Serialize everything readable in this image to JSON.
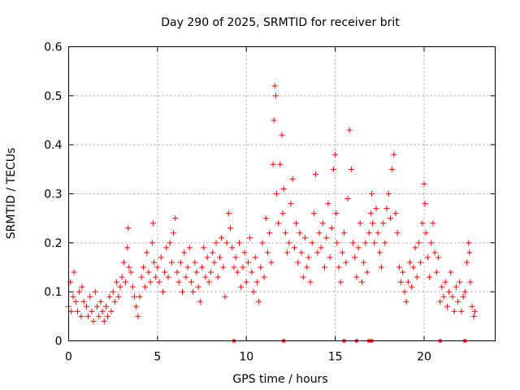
{
  "chart_data": {
    "type": "scatter",
    "title": "Day 290 of 2025, SRMTID for receiver brit",
    "xlabel": "GPS time / hours",
    "ylabel": "SRMTID / TECUs",
    "xlim": [
      0,
      24
    ],
    "ylim": [
      0,
      0.6
    ],
    "x_ticks": [
      0,
      5,
      10,
      15,
      20
    ],
    "x_tick_labels": [
      "0",
      "5",
      "10",
      "15",
      "20"
    ],
    "y_ticks": [
      0,
      0.1,
      0.2,
      0.3,
      0.4,
      0.5,
      0.6
    ],
    "y_tick_labels": [
      "0",
      "0.1",
      "0.2",
      "0.3",
      "0.4",
      "0.5",
      "0.6"
    ],
    "grid": true,
    "legend": "none",
    "marker": "plus",
    "series": [
      {
        "name": "SRMTID",
        "color": "#ff0000",
        "points": [
          [
            0.0,
            0.07
          ],
          [
            0.1,
            0.12
          ],
          [
            0.15,
            0.06
          ],
          [
            0.25,
            0.09
          ],
          [
            0.3,
            0.14
          ],
          [
            0.4,
            0.08
          ],
          [
            0.5,
            0.06
          ],
          [
            0.6,
            0.1
          ],
          [
            0.7,
            0.05
          ],
          [
            0.75,
            0.11
          ],
          [
            0.85,
            0.08
          ],
          [
            1.0,
            0.07
          ],
          [
            1.1,
            0.05
          ],
          [
            1.2,
            0.09
          ],
          [
            1.3,
            0.06
          ],
          [
            1.4,
            0.04
          ],
          [
            1.5,
            0.1
          ],
          [
            1.6,
            0.07
          ],
          [
            1.7,
            0.05
          ],
          [
            1.8,
            0.08
          ],
          [
            1.9,
            0.06
          ],
          [
            2.0,
            0.04
          ],
          [
            2.1,
            0.07
          ],
          [
            2.2,
            0.05
          ],
          [
            2.3,
            0.09
          ],
          [
            2.4,
            0.06
          ],
          [
            2.5,
            0.1
          ],
          [
            2.6,
            0.08
          ],
          [
            2.7,
            0.12
          ],
          [
            2.8,
            0.09
          ],
          [
            2.9,
            0.11
          ],
          [
            3.0,
            0.13
          ],
          [
            3.1,
            0.16
          ],
          [
            3.2,
            0.12
          ],
          [
            3.3,
            0.19
          ],
          [
            3.35,
            0.23
          ],
          [
            3.4,
            0.15
          ],
          [
            3.5,
            0.14
          ],
          [
            3.6,
            0.11
          ],
          [
            3.7,
            0.09
          ],
          [
            3.8,
            0.07
          ],
          [
            3.9,
            0.05
          ],
          [
            4.0,
            0.09
          ],
          [
            4.1,
            0.13
          ],
          [
            4.2,
            0.15
          ],
          [
            4.3,
            0.11
          ],
          [
            4.4,
            0.18
          ],
          [
            4.5,
            0.14
          ],
          [
            4.6,
            0.12
          ],
          [
            4.7,
            0.2
          ],
          [
            4.75,
            0.24
          ],
          [
            4.8,
            0.16
          ],
          [
            4.9,
            0.13
          ],
          [
            5.0,
            0.15
          ],
          [
            5.1,
            0.12
          ],
          [
            5.2,
            0.17
          ],
          [
            5.3,
            0.1
          ],
          [
            5.4,
            0.14
          ],
          [
            5.5,
            0.19
          ],
          [
            5.6,
            0.13
          ],
          [
            5.7,
            0.2
          ],
          [
            5.8,
            0.16
          ],
          [
            5.9,
            0.22
          ],
          [
            6.0,
            0.25
          ],
          [
            6.1,
            0.14
          ],
          [
            6.2,
            0.12
          ],
          [
            6.3,
            0.16
          ],
          [
            6.4,
            0.1
          ],
          [
            6.5,
            0.18
          ],
          [
            6.6,
            0.13
          ],
          [
            6.7,
            0.15
          ],
          [
            6.8,
            0.19
          ],
          [
            6.9,
            0.12
          ],
          [
            7.0,
            0.1
          ],
          [
            7.1,
            0.16
          ],
          [
            7.2,
            0.14
          ],
          [
            7.3,
            0.11
          ],
          [
            7.4,
            0.08
          ],
          [
            7.5,
            0.15
          ],
          [
            7.6,
            0.19
          ],
          [
            7.7,
            0.13
          ],
          [
            7.8,
            0.17
          ],
          [
            7.9,
            0.12
          ],
          [
            8.0,
            0.14
          ],
          [
            8.1,
            0.18
          ],
          [
            8.2,
            0.16
          ],
          [
            8.3,
            0.2
          ],
          [
            8.4,
            0.13
          ],
          [
            8.5,
            0.17
          ],
          [
            8.6,
            0.21
          ],
          [
            8.7,
            0.15
          ],
          [
            8.8,
            0.09
          ],
          [
            8.9,
            0.2
          ],
          [
            9.0,
            0.26
          ],
          [
            9.1,
            0.23
          ],
          [
            9.2,
            0.19
          ],
          [
            9.3,
            0.15
          ],
          [
            9.4,
            0.17
          ],
          [
            9.5,
            0.14
          ],
          [
            9.6,
            0.2
          ],
          [
            9.7,
            0.11
          ],
          [
            9.8,
            0.15
          ],
          [
            9.9,
            0.18
          ],
          [
            10.0,
            0.12
          ],
          [
            10.1,
            0.16
          ],
          [
            10.2,
            0.21
          ],
          [
            10.3,
            0.14
          ],
          [
            10.4,
            0.1
          ],
          [
            10.5,
            0.17
          ],
          [
            10.6,
            0.12
          ],
          [
            10.7,
            0.08
          ],
          [
            10.8,
            0.15
          ],
          [
            10.9,
            0.2
          ],
          [
            11.0,
            0.13
          ],
          [
            11.1,
            0.25
          ],
          [
            11.2,
            0.18
          ],
          [
            11.3,
            0.22
          ],
          [
            11.4,
            0.16
          ],
          [
            11.5,
            0.36
          ],
          [
            11.55,
            0.45
          ],
          [
            11.6,
            0.52
          ],
          [
            11.65,
            0.5
          ],
          [
            11.7,
            0.3
          ],
          [
            11.8,
            0.24
          ],
          [
            11.9,
            0.36
          ],
          [
            12.0,
            0.42
          ],
          [
            12.05,
            0.26
          ],
          [
            12.1,
            0.31
          ],
          [
            12.2,
            0.22
          ],
          [
            12.3,
            0.18
          ],
          [
            12.4,
            0.2
          ],
          [
            12.5,
            0.28
          ],
          [
            12.6,
            0.33
          ],
          [
            12.7,
            0.19
          ],
          [
            12.8,
            0.24
          ],
          [
            12.9,
            0.16
          ],
          [
            13.0,
            0.22
          ],
          [
            13.1,
            0.18
          ],
          [
            13.2,
            0.13
          ],
          [
            13.3,
            0.21
          ],
          [
            13.4,
            0.15
          ],
          [
            13.5,
            0.17
          ],
          [
            13.6,
            0.12
          ],
          [
            13.7,
            0.2
          ],
          [
            13.8,
            0.26
          ],
          [
            13.9,
            0.34
          ],
          [
            14.0,
            0.18
          ],
          [
            14.1,
            0.22
          ],
          [
            14.2,
            0.19
          ],
          [
            14.3,
            0.24
          ],
          [
            14.4,
            0.15
          ],
          [
            14.5,
            0.21
          ],
          [
            14.6,
            0.28
          ],
          [
            14.7,
            0.17
          ],
          [
            14.8,
            0.23
          ],
          [
            14.9,
            0.35
          ],
          [
            15.0,
            0.38
          ],
          [
            15.05,
            0.26
          ],
          [
            15.1,
            0.2
          ],
          [
            15.2,
            0.15
          ],
          [
            15.3,
            0.12
          ],
          [
            15.4,
            0.18
          ],
          [
            15.5,
            0.22
          ],
          [
            15.6,
            0.16
          ],
          [
            15.7,
            0.29
          ],
          [
            15.8,
            0.43
          ],
          [
            15.9,
            0.35
          ],
          [
            16.0,
            0.2
          ],
          [
            16.1,
            0.17
          ],
          [
            16.2,
            0.13
          ],
          [
            16.3,
            0.19
          ],
          [
            16.4,
            0.24
          ],
          [
            16.5,
            0.12
          ],
          [
            16.6,
            0.16
          ],
          [
            16.7,
            0.2
          ],
          [
            16.8,
            0.14
          ],
          [
            16.9,
            0.22
          ],
          [
            17.0,
            0.26
          ],
          [
            17.05,
            0.3
          ],
          [
            17.1,
            0.24
          ],
          [
            17.2,
            0.2
          ],
          [
            17.3,
            0.27
          ],
          [
            17.4,
            0.22
          ],
          [
            17.5,
            0.18
          ],
          [
            17.6,
            0.15
          ],
          [
            17.7,
            0.24
          ],
          [
            17.8,
            0.2
          ],
          [
            17.9,
            0.27
          ],
          [
            18.0,
            0.3
          ],
          [
            18.1,
            0.25
          ],
          [
            18.2,
            0.35
          ],
          [
            18.3,
            0.38
          ],
          [
            18.4,
            0.26
          ],
          [
            18.5,
            0.22
          ],
          [
            18.6,
            0.15
          ],
          [
            18.7,
            0.12
          ],
          [
            18.8,
            0.14
          ],
          [
            18.9,
            0.1
          ],
          [
            19.0,
            0.08
          ],
          [
            19.1,
            0.12
          ],
          [
            19.2,
            0.16
          ],
          [
            19.3,
            0.11
          ],
          [
            19.4,
            0.15
          ],
          [
            19.5,
            0.19
          ],
          [
            19.6,
            0.13
          ],
          [
            19.7,
            0.2
          ],
          [
            19.8,
            0.16
          ],
          [
            19.9,
            0.24
          ],
          [
            20.0,
            0.32
          ],
          [
            20.05,
            0.28
          ],
          [
            20.1,
            0.22
          ],
          [
            20.2,
            0.17
          ],
          [
            20.3,
            0.13
          ],
          [
            20.4,
            0.2
          ],
          [
            20.5,
            0.24
          ],
          [
            20.6,
            0.18
          ],
          [
            20.7,
            0.14
          ],
          [
            20.8,
            0.17
          ],
          [
            20.9,
            0.08
          ],
          [
            21.0,
            0.11
          ],
          [
            21.1,
            0.09
          ],
          [
            21.2,
            0.12
          ],
          [
            21.3,
            0.07
          ],
          [
            21.4,
            0.1
          ],
          [
            21.5,
            0.14
          ],
          [
            21.6,
            0.09
          ],
          [
            21.7,
            0.06
          ],
          [
            21.8,
            0.11
          ],
          [
            21.9,
            0.08
          ],
          [
            22.0,
            0.12
          ],
          [
            22.1,
            0.06
          ],
          [
            22.2,
            0.09
          ],
          [
            22.3,
            0.1
          ],
          [
            22.4,
            0.16
          ],
          [
            22.5,
            0.2
          ],
          [
            22.55,
            0.18
          ],
          [
            22.6,
            0.12
          ],
          [
            22.7,
            0.07
          ],
          [
            22.8,
            0.05
          ],
          [
            22.85,
            0.06
          ]
        ]
      }
    ],
    "zero_markers_x": [
      9.3,
      12.1,
      15.5,
      16.2,
      16.9,
      17.05,
      20.9,
      22.3
    ]
  }
}
